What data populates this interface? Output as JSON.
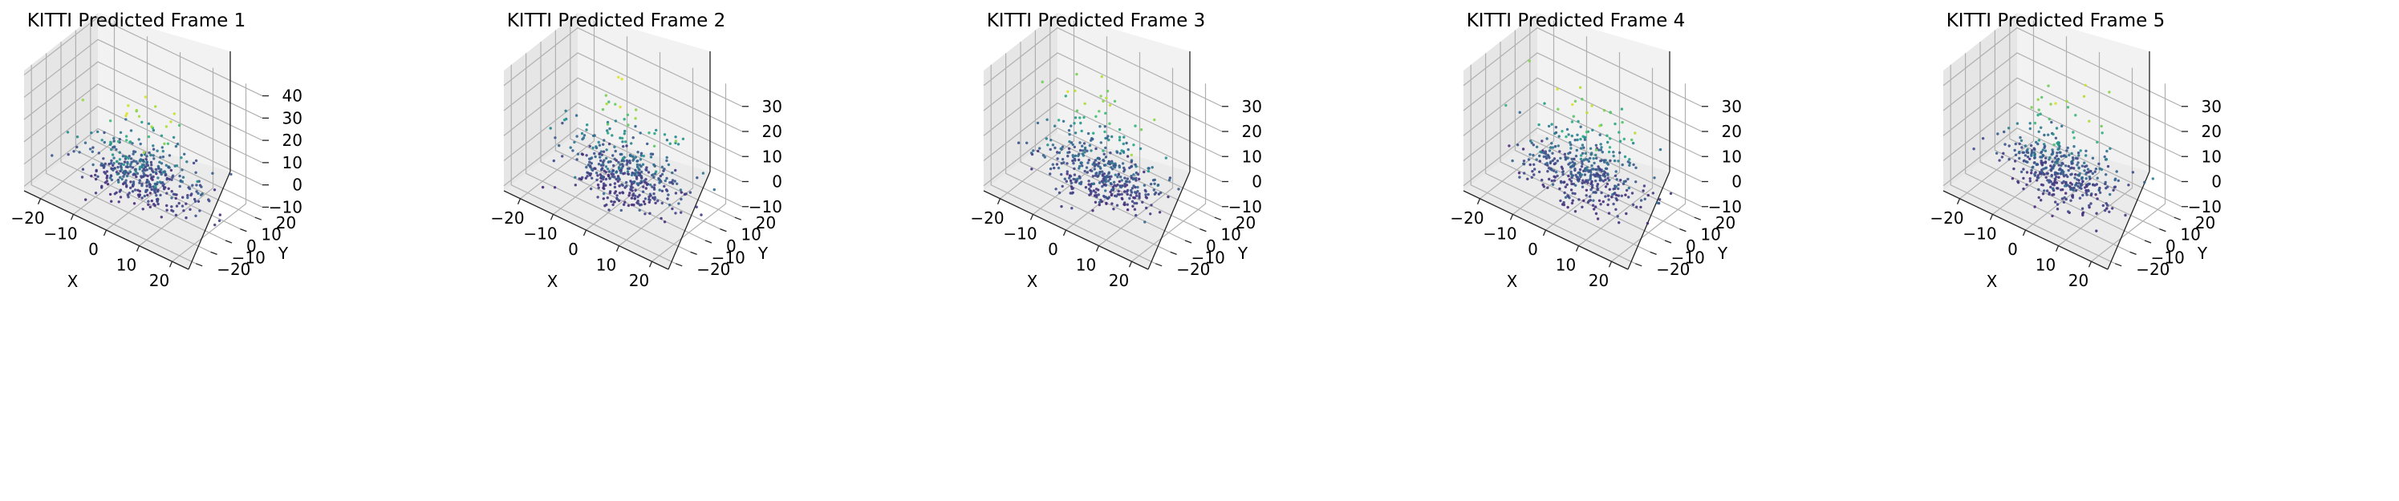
{
  "chart_data": [
    {
      "type": "scatter",
      "title": "KITTI Predicted Frame 1",
      "xlabel": "X",
      "ylabel": "Y",
      "zlabel": "",
      "xticks": [
        -20,
        -10,
        0,
        10,
        20
      ],
      "yticks": [
        -20,
        -10,
        0,
        10,
        20
      ],
      "zticks": [
        -10,
        0,
        10,
        20,
        30,
        40
      ],
      "xlim": [
        -25,
        25
      ],
      "ylim": [
        -25,
        25
      ],
      "zlim": [
        -12,
        42
      ],
      "grid": true,
      "colormap": "viridis",
      "point_count": 420,
      "seed": 11
    },
    {
      "type": "scatter",
      "title": "KITTI Predicted Frame 2",
      "xlabel": "X",
      "ylabel": "Y",
      "zlabel": "",
      "xticks": [
        -20,
        -10,
        0,
        10,
        20
      ],
      "yticks": [
        -20,
        -10,
        0,
        10,
        20
      ],
      "zticks": [
        -10,
        0,
        10,
        20,
        30
      ],
      "xlim": [
        -25,
        25
      ],
      "ylim": [
        -25,
        25
      ],
      "zlim": [
        -12,
        36
      ],
      "grid": true,
      "colormap": "viridis",
      "point_count": 420,
      "seed": 23
    },
    {
      "type": "scatter",
      "title": "KITTI Predicted Frame 3",
      "xlabel": "X",
      "ylabel": "Y",
      "zlabel": "",
      "xticks": [
        -20,
        -10,
        0,
        10,
        20
      ],
      "yticks": [
        -20,
        -10,
        0,
        10,
        20
      ],
      "zticks": [
        -10,
        0,
        10,
        20,
        30
      ],
      "xlim": [
        -25,
        25
      ],
      "ylim": [
        -25,
        25
      ],
      "zlim": [
        -12,
        36
      ],
      "grid": true,
      "colormap": "viridis",
      "point_count": 420,
      "seed": 37
    },
    {
      "type": "scatter",
      "title": "KITTI Predicted Frame 4",
      "xlabel": "X",
      "ylabel": "Y",
      "zlabel": "",
      "xticks": [
        -20,
        -10,
        0,
        10,
        20
      ],
      "yticks": [
        -20,
        -10,
        0,
        10,
        20
      ],
      "zticks": [
        -10,
        0,
        10,
        20,
        30
      ],
      "xlim": [
        -25,
        25
      ],
      "ylim": [
        -25,
        25
      ],
      "zlim": [
        -12,
        36
      ],
      "grid": true,
      "colormap": "viridis",
      "point_count": 420,
      "seed": 41
    },
    {
      "type": "scatter",
      "title": "KITTI Predicted Frame 5",
      "xlabel": "X",
      "ylabel": "Y",
      "zlabel": "",
      "xticks": [
        -20,
        -10,
        0,
        10,
        20
      ],
      "yticks": [
        -20,
        -10,
        0,
        10,
        20
      ],
      "zticks": [
        -10,
        0,
        10,
        20,
        30
      ],
      "xlim": [
        -25,
        25
      ],
      "ylim": [
        -25,
        25
      ],
      "zlim": [
        -12,
        36
      ],
      "grid": true,
      "colormap": "viridis",
      "point_count": 420,
      "seed": 53
    }
  ]
}
